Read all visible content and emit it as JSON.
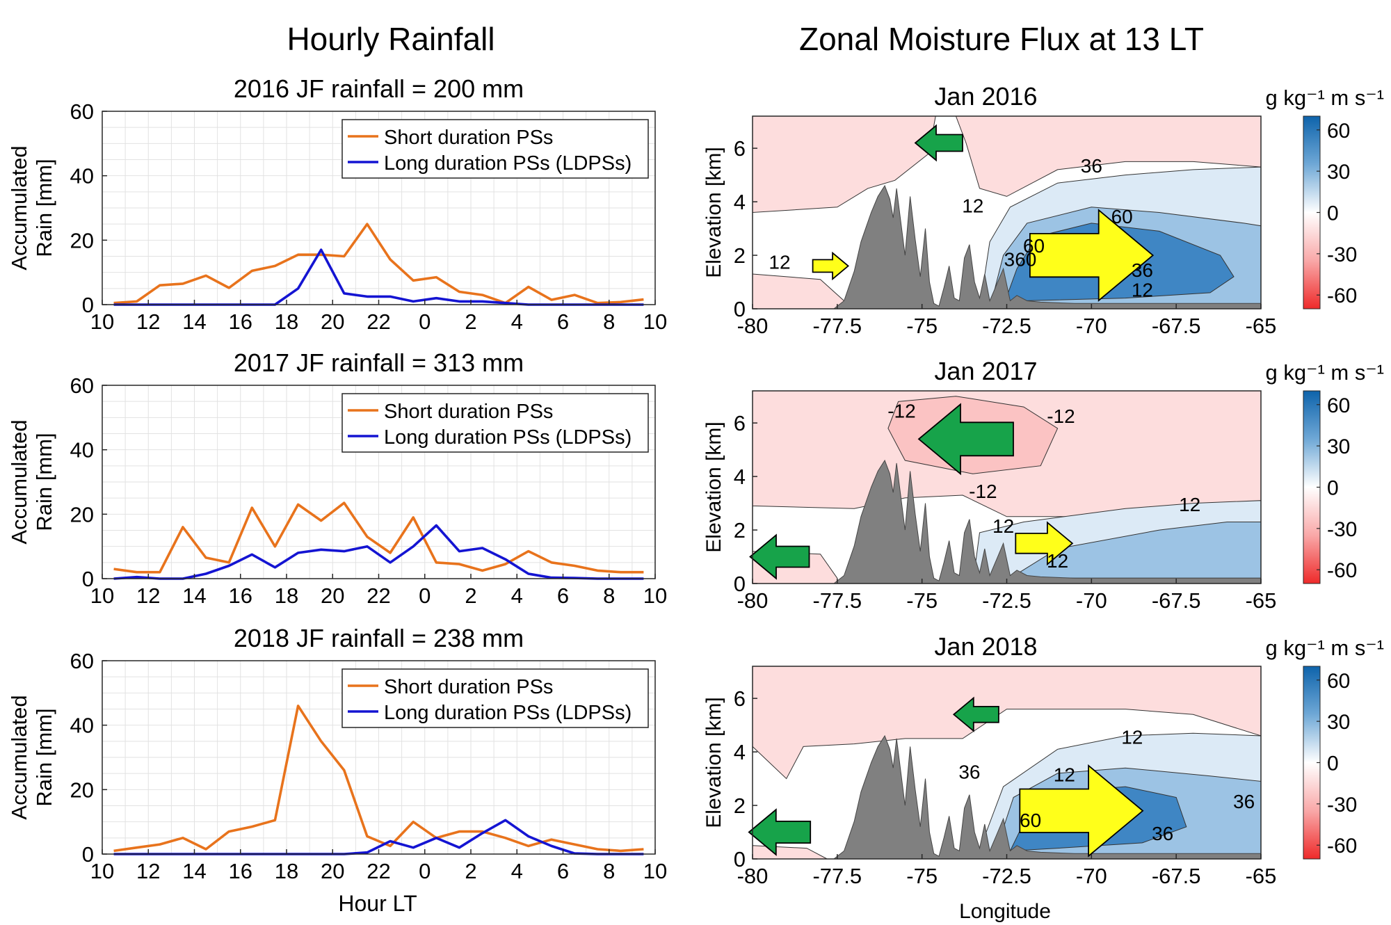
{
  "figure": {
    "left_title": "Hourly Rainfall",
    "right_title": "Zonal Moisture Flux at 13 LT"
  },
  "rain_axes": {
    "ylabel_line1": "Accumulated",
    "ylabel_line2": "Rain [mm]",
    "xlabel": "Hour LT",
    "xticks": [
      "10",
      "12",
      "14",
      "16",
      "18",
      "20",
      "22",
      "0",
      "2",
      "4",
      "6",
      "8",
      "10"
    ],
    "yticks": [
      "0",
      "20",
      "40",
      "60"
    ],
    "legend_short": "Short duration PSs",
    "legend_long": "Long duration PSs (LDPSs)"
  },
  "flux_axes": {
    "ylabel": "Elevation [km]",
    "xlabel": "Longitude",
    "xticks": [
      "-80",
      "-77.5",
      "-75",
      "-72.5",
      "-70",
      "-67.5",
      "-65"
    ],
    "yticks": [
      "0",
      "2",
      "4",
      "6"
    ],
    "cbar_label": "g kg⁻¹ m s⁻¹",
    "cbar_ticks": [
      "60",
      "30",
      "0",
      "-30",
      "-60"
    ]
  },
  "colors": {
    "short": "#E8731C",
    "long": "#1414D2",
    "terrain": "#808080",
    "east_arrow": "#FFFF1A",
    "west_arrow": "#17A34A",
    "pos_light": "#DCEAF6",
    "pos_mid": "#9CC3E4",
    "pos_dark": "#3F86C4",
    "neg_light": "#FDDDDD"
  },
  "chart_data": [
    {
      "type": "line",
      "title": "2016  JF rainfall = 200 mm",
      "xlabel": "",
      "ylabel": "Accumulated Rain [mm]",
      "ylim": [
        0,
        60
      ],
      "x": [
        "10.5",
        "11.5",
        "12.5",
        "13.5",
        "14.5",
        "15.5",
        "16.5",
        "17.5",
        "18.5",
        "19.5",
        "20.5",
        "21.5",
        "22.5",
        "23.5",
        "0.5",
        "1.5",
        "2.5",
        "3.5",
        "4.5",
        "5.5",
        "6.5",
        "7.5",
        "8.5",
        "9.5"
      ],
      "series": [
        {
          "name": "Short duration PSs",
          "values": [
            0.5,
            1,
            6,
            6.5,
            9,
            5.2,
            10.5,
            12,
            15.5,
            15.5,
            15,
            25,
            14,
            7.5,
            8.5,
            4,
            3,
            0.5,
            5.5,
            1.5,
            3,
            0.5,
            0.8,
            1.6
          ]
        },
        {
          "name": "Long duration PSs (LDPSs)",
          "values": [
            0,
            0,
            0,
            0,
            0,
            0,
            0,
            0,
            5,
            17,
            3.5,
            2.5,
            2.5,
            1,
            2,
            1,
            1,
            0.5,
            0,
            0,
            0,
            0,
            0,
            0
          ]
        }
      ]
    },
    {
      "type": "line",
      "title": "2017 JF rainfall = 313 mm",
      "xlabel": "",
      "ylabel": "Accumulated Rain [mm]",
      "ylim": [
        0,
        60
      ],
      "x": [
        "10.5",
        "11.5",
        "12.5",
        "13.5",
        "14.5",
        "15.5",
        "16.5",
        "17.5",
        "18.5",
        "19.5",
        "20.5",
        "21.5",
        "22.5",
        "23.5",
        "0.5",
        "1.5",
        "2.5",
        "3.5",
        "4.5",
        "5.5",
        "6.5",
        "7.5",
        "8.5",
        "9.5"
      ],
      "series": [
        {
          "name": "Short duration PSs",
          "values": [
            3,
            2,
            2,
            16,
            6.5,
            5,
            22,
            10,
            23,
            18,
            23.5,
            13,
            8,
            19,
            5,
            4.5,
            2.5,
            4.5,
            8.5,
            5,
            4,
            2.5,
            2,
            2
          ]
        },
        {
          "name": "Long duration PSs (LDPSs)",
          "values": [
            0,
            0.5,
            0,
            0,
            1.5,
            4,
            7.5,
            3.5,
            8,
            9,
            8.5,
            10,
            5,
            10,
            16.5,
            8.5,
            9.5,
            6,
            1.5,
            0.3,
            0.2,
            0,
            0,
            0
          ]
        }
      ]
    },
    {
      "type": "line",
      "title": "2018  JF rainfall = 238 mm",
      "xlabel": "Hour LT",
      "ylabel": "Accumulated Rain [mm]",
      "ylim": [
        0,
        60
      ],
      "x": [
        "10.5",
        "11.5",
        "12.5",
        "13.5",
        "14.5",
        "15.5",
        "16.5",
        "17.5",
        "18.5",
        "19.5",
        "20.5",
        "21.5",
        "22.5",
        "23.5",
        "0.5",
        "1.5",
        "2.5",
        "3.5",
        "4.5",
        "5.5",
        "6.5",
        "7.5",
        "8.5",
        "9.5"
      ],
      "series": [
        {
          "name": "Short duration PSs",
          "values": [
            1,
            2,
            3,
            5,
            1.5,
            7,
            8.5,
            10.5,
            46,
            35,
            26,
            5.5,
            2.5,
            10,
            5,
            7,
            7,
            5,
            2.5,
            4.5,
            3,
            1.5,
            1,
            1.5
          ]
        },
        {
          "name": "Long duration PSs (LDPSs)",
          "values": [
            0,
            0,
            0,
            0,
            0,
            0,
            0,
            0,
            0,
            0,
            0,
            0.5,
            4,
            2,
            5,
            2,
            6.5,
            10.5,
            5.5,
            2.5,
            0.2,
            0,
            0,
            0
          ]
        }
      ]
    },
    {
      "type": "heatmap",
      "title": "Jan 2016",
      "xlabel": "",
      "ylabel": "Elevation [km]",
      "xlim": [
        -80,
        -65
      ],
      "ylim": [
        0,
        7.2
      ],
      "colorbar": {
        "label": "g kg⁻¹ m s⁻¹",
        "range": [
          -70,
          70
        ],
        "ticks": [
          60,
          30,
          0,
          -30,
          -60
        ]
      },
      "contour_labels": [
        "12",
        "12",
        "36",
        "60",
        "36",
        "12",
        "360",
        "60"
      ]
    },
    {
      "type": "heatmap",
      "title": "Jan 2017",
      "xlabel": "",
      "ylabel": "Elevation [km]",
      "xlim": [
        -80,
        -65
      ],
      "ylim": [
        0,
        7.2
      ],
      "colorbar": {
        "label": "g kg⁻¹ m s⁻¹",
        "range": [
          -70,
          70
        ],
        "ticks": [
          60,
          30,
          0,
          -30,
          -60
        ]
      },
      "contour_labels": [
        "-12",
        "-12",
        "-12",
        "12",
        "12",
        "12"
      ]
    },
    {
      "type": "heatmap",
      "title": "Jan 2018",
      "xlabel": "Longitude",
      "ylabel": "Elevation [km]",
      "xlim": [
        -80,
        -65
      ],
      "ylim": [
        0,
        7.2
      ],
      "colorbar": {
        "label": "g kg⁻¹ m s⁻¹",
        "range": [
          -70,
          70
        ],
        "ticks": [
          60,
          30,
          0,
          -30,
          -60
        ]
      },
      "contour_labels": [
        "12",
        "12",
        "36",
        "36",
        "36",
        "60"
      ]
    }
  ]
}
